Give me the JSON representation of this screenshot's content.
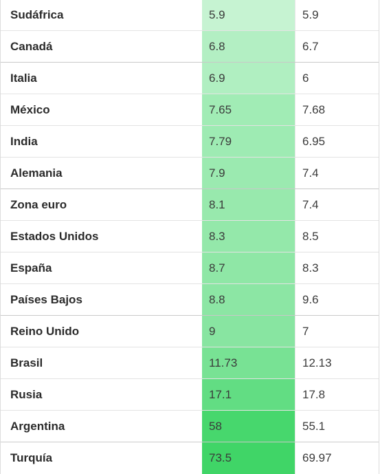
{
  "rows": [
    {
      "country": "Sudáfrica",
      "v1": "5.9",
      "v2": "5.9",
      "color": "#c6f3d2"
    },
    {
      "country": "Canadá",
      "v1": "6.8",
      "v2": "6.7",
      "color": "#b3efc3"
    },
    {
      "country": "Italia",
      "v1": "6.9",
      "v2": "6",
      "color": "#b0efc1"
    },
    {
      "country": "México",
      "v1": "7.65",
      "v2": "7.68",
      "color": "#a1ecb5"
    },
    {
      "country": "India",
      "v1": "7.79",
      "v2": "6.95",
      "color": "#9eebb3"
    },
    {
      "country": "Alemania",
      "v1": "7.9",
      "v2": "7.4",
      "color": "#9beab0"
    },
    {
      "country": "Zona euro",
      "v1": "8.1",
      "v2": "7.4",
      "color": "#98e9ad"
    },
    {
      "country": "Estados Unidos",
      "v1": "8.3",
      "v2": "8.5",
      "color": "#94e8aa"
    },
    {
      "country": "España",
      "v1": "8.7",
      "v2": "8.3",
      "color": "#8fe7a6"
    },
    {
      "country": "Países Bajos",
      "v1": "8.8",
      "v2": "9.6",
      "color": "#8ce6a4"
    },
    {
      "country": "Reino Unido",
      "v1": "9",
      "v2": "7",
      "color": "#88e5a1"
    },
    {
      "country": "Brasil",
      "v1": "11.73",
      "v2": "12.13",
      "color": "#78e294"
    },
    {
      "country": "Rusia",
      "v1": "17.1",
      "v2": "17.8",
      "color": "#62dd83"
    },
    {
      "country": "Argentina",
      "v1": "58",
      "v2": "55.1",
      "color": "#47d76d"
    },
    {
      "country": "Turquía",
      "v1": "73.5",
      "v2": "69.97",
      "color": "#40d567"
    }
  ]
}
